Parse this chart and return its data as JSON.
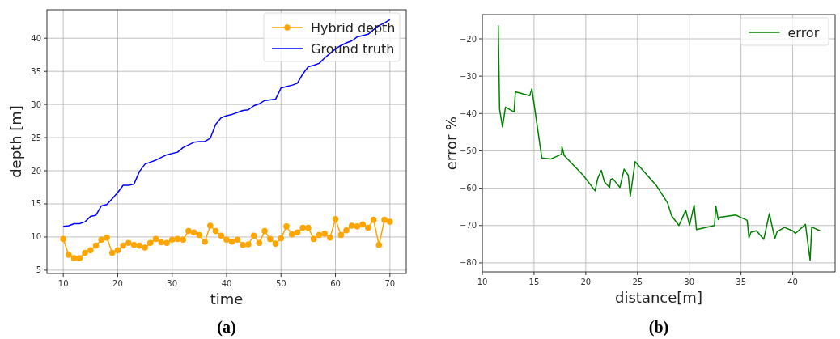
{
  "chart_data": [
    {
      "type": "line",
      "xlabel": "time",
      "ylabel": "depth [m]",
      "xlim": [
        7,
        73
      ],
      "ylim": [
        4.5,
        44.3
      ],
      "xticks": [
        10,
        20,
        30,
        40,
        50,
        60,
        70
      ],
      "yticks": [
        5,
        10,
        15,
        20,
        25,
        30,
        35,
        40
      ],
      "grid": true,
      "legend": "top right",
      "annotations": [
        "(a)"
      ],
      "series": [
        {
          "name": "Hybrid depth",
          "color": "#ffa500",
          "marker": "circle",
          "x": [
            10,
            11,
            12,
            13,
            14,
            15,
            16,
            17,
            18,
            19,
            20,
            21,
            22,
            23,
            24,
            25,
            26,
            27,
            28,
            29,
            30,
            31,
            32,
            33,
            34,
            35,
            36,
            37,
            38,
            39,
            40,
            41,
            42,
            43,
            44,
            45,
            46,
            47,
            48,
            49,
            50,
            51,
            52,
            53,
            54,
            55,
            56,
            57,
            58,
            59,
            60,
            61,
            62,
            63,
            64,
            65,
            66,
            67,
            68,
            69,
            70
          ],
          "values": [
            9.7,
            7.3,
            6.8,
            6.8,
            7.6,
            8.0,
            8.7,
            9.6,
            9.9,
            7.6,
            8.0,
            8.7,
            9.1,
            8.8,
            8.7,
            8.4,
            9.1,
            9.7,
            9.2,
            9.1,
            9.6,
            9.7,
            9.6,
            10.9,
            10.7,
            10.3,
            9.3,
            11.7,
            10.9,
            10.2,
            9.6,
            9.3,
            9.6,
            8.8,
            8.9,
            10.2,
            9.1,
            10.9,
            9.7,
            9.0,
            9.8,
            11.6,
            10.4,
            10.7,
            11.4,
            11.4,
            9.7,
            10.3,
            10.5,
            9.9,
            12.7,
            10.3,
            11.0,
            11.7,
            11.6,
            11.9,
            11.4,
            12.6,
            8.8,
            12.6,
            12.3
          ]
        },
        {
          "name": "Ground truth",
          "color": "#0000ff",
          "marker": "none",
          "x": [
            10,
            11,
            12,
            13,
            14,
            15,
            16,
            17,
            18,
            19,
            20,
            21,
            22,
            23,
            24,
            25,
            26,
            27,
            28,
            29,
            30,
            31,
            32,
            33,
            34,
            35,
            36,
            37,
            38,
            39,
            40,
            41,
            42,
            43,
            44,
            45,
            46,
            47,
            48,
            49,
            50,
            51,
            52,
            53,
            54,
            55,
            56,
            57,
            58,
            59,
            60,
            61,
            62,
            63,
            64,
            65,
            66,
            67,
            68,
            69,
            70
          ],
          "values": [
            11.6,
            11.7,
            12.0,
            12.0,
            12.3,
            13.1,
            13.3,
            14.7,
            14.9,
            15.8,
            16.7,
            17.8,
            17.8,
            18.0,
            19.9,
            21.0,
            21.3,
            21.6,
            22.0,
            22.4,
            22.6,
            22.8,
            23.5,
            23.9,
            24.3,
            24.4,
            24.4,
            24.9,
            27.0,
            28.0,
            28.3,
            28.5,
            28.8,
            29.1,
            29.2,
            29.8,
            30.1,
            30.6,
            30.7,
            30.8,
            32.5,
            32.7,
            32.9,
            33.2,
            34.6,
            35.7,
            35.9,
            36.2,
            37.0,
            37.7,
            38.4,
            38.9,
            39.3,
            39.6,
            40.2,
            40.4,
            40.6,
            41.3,
            41.9,
            42.3,
            42.8
          ]
        }
      ]
    },
    {
      "type": "line",
      "xlabel": "distance[m]",
      "ylabel": "error %",
      "xlim": [
        10,
        44.1
      ],
      "ylim": [
        -82.4,
        -13.5
      ],
      "xticks": [
        10,
        15,
        20,
        25,
        30,
        35,
        40
      ],
      "yticks": [
        -80,
        -70,
        -60,
        -50,
        -40,
        -30,
        -20
      ],
      "grid": true,
      "legend": "top right",
      "annotations": [
        "(b)"
      ],
      "series": [
        {
          "name": "error",
          "color": "#008000",
          "marker": "none",
          "x": [
            11.54,
            11.67,
            11.95,
            12.24,
            13.07,
            13.2,
            14.58,
            14.79,
            15.0,
            15.75,
            16.6,
            17.66,
            17.7,
            17.9,
            19.74,
            20.9,
            21.15,
            21.5,
            21.8,
            22.3,
            22.4,
            22.6,
            23.3,
            23.7,
            24.1,
            24.3,
            24.77,
            26.85,
            27.9,
            28.3,
            29.0,
            29.66,
            30.03,
            30.47,
            30.7,
            32.44,
            32.57,
            32.8,
            32.97,
            34.5,
            35.6,
            35.77,
            35.96,
            36.5,
            37.2,
            37.74,
            38.27,
            38.5,
            39.2,
            40.0,
            40.26,
            41.23,
            41.68,
            41.84,
            42.65
          ],
          "values": [
            -16.4,
            -38.8,
            -43.6,
            -38.3,
            -39.6,
            -34.2,
            -35.2,
            -33.4,
            -37.4,
            -51.9,
            -52.2,
            -50.9,
            -48.9,
            -51.2,
            -56.5,
            -60.7,
            -57.4,
            -55.2,
            -58.3,
            -59.8,
            -57.7,
            -57.4,
            -59.8,
            -54.9,
            -56.5,
            -62.1,
            -52.9,
            -59.4,
            -63.9,
            -67.4,
            -70.0,
            -65.9,
            -69.9,
            -64.5,
            -71.1,
            -70.0,
            -64.8,
            -68.4,
            -67.8,
            -67.2,
            -68.6,
            -73.3,
            -71.8,
            -71.4,
            -73.7,
            -66.8,
            -73.5,
            -71.6,
            -70.5,
            -71.4,
            -72.1,
            -69.7,
            -79.3,
            -70.4,
            -71.4
          ]
        }
      ]
    }
  ]
}
